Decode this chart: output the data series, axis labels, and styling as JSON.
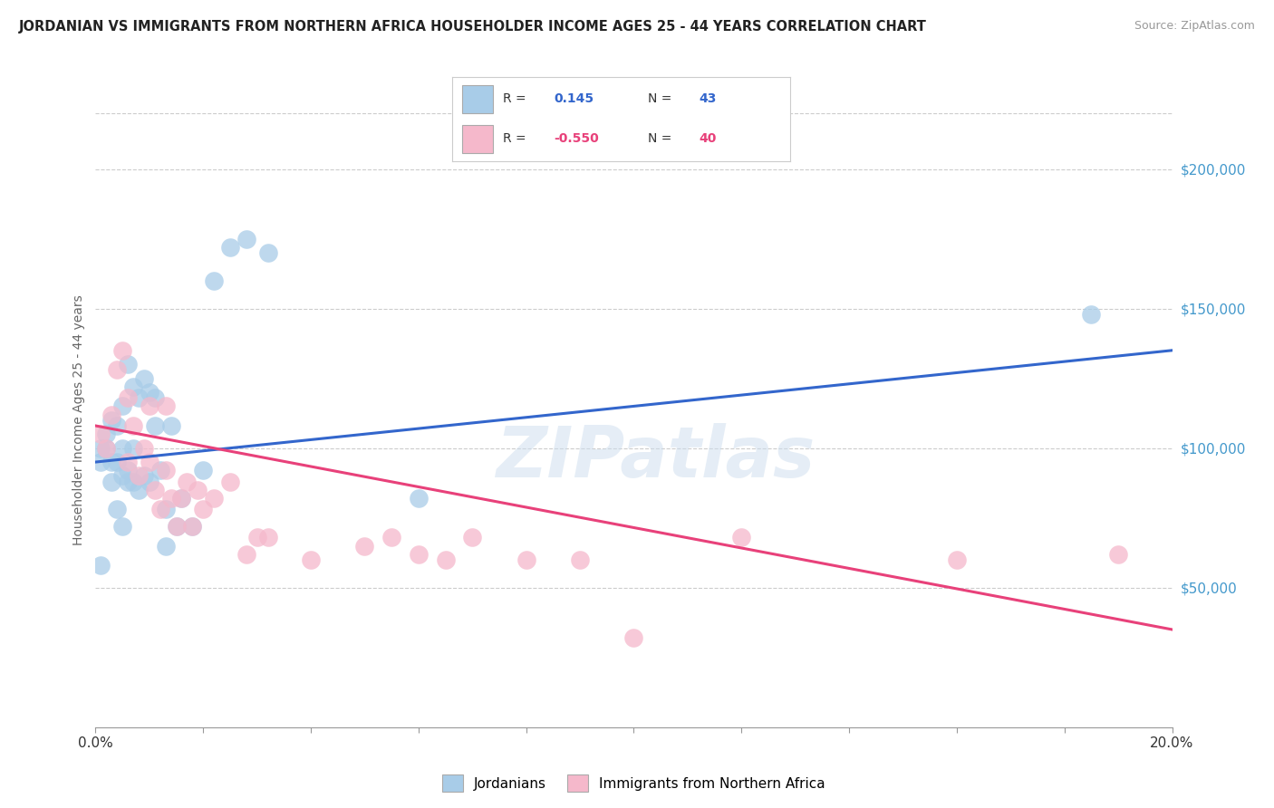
{
  "title": "JORDANIAN VS IMMIGRANTS FROM NORTHERN AFRICA HOUSEHOLDER INCOME AGES 25 - 44 YEARS CORRELATION CHART",
  "source": "Source: ZipAtlas.com",
  "ylabel": "Householder Income Ages 25 - 44 years",
  "xlim": [
    0.0,
    0.2
  ],
  "ylim": [
    0,
    220000
  ],
  "xticks": [
    0.0,
    0.02,
    0.04,
    0.06,
    0.08,
    0.1,
    0.12,
    0.14,
    0.16,
    0.18,
    0.2
  ],
  "yticks_right": [
    50000,
    100000,
    150000,
    200000
  ],
  "ytick_labels_right": [
    "$50,000",
    "$100,000",
    "$150,000",
    "$200,000"
  ],
  "blue_R": "0.145",
  "blue_N": "43",
  "pink_R": "-0.550",
  "pink_N": "40",
  "blue_color": "#a8cce8",
  "pink_color": "#f5b8cb",
  "blue_line_color": "#3366cc",
  "pink_line_color": "#e8417a",
  "background_color": "#ffffff",
  "grid_color": "#cccccc",
  "watermark": "ZIPatlas",
  "legend_label_blue": "Jordanians",
  "legend_label_pink": "Immigrants from Northern Africa",
  "blue_x": [
    0.001,
    0.001,
    0.002,
    0.002,
    0.003,
    0.003,
    0.003,
    0.004,
    0.004,
    0.004,
    0.005,
    0.005,
    0.005,
    0.005,
    0.006,
    0.006,
    0.006,
    0.007,
    0.007,
    0.007,
    0.008,
    0.008,
    0.009,
    0.009,
    0.01,
    0.01,
    0.011,
    0.011,
    0.012,
    0.013,
    0.013,
    0.014,
    0.015,
    0.016,
    0.018,
    0.02,
    0.022,
    0.025,
    0.028,
    0.032,
    0.06,
    0.185,
    0.001
  ],
  "blue_y": [
    100000,
    95000,
    100000,
    105000,
    110000,
    95000,
    88000,
    108000,
    95000,
    78000,
    115000,
    100000,
    90000,
    72000,
    130000,
    92000,
    88000,
    122000,
    100000,
    88000,
    118000,
    85000,
    125000,
    90000,
    120000,
    88000,
    118000,
    108000,
    92000,
    78000,
    65000,
    108000,
    72000,
    82000,
    72000,
    92000,
    160000,
    172000,
    175000,
    170000,
    82000,
    148000,
    58000
  ],
  "pink_x": [
    0.001,
    0.002,
    0.003,
    0.004,
    0.005,
    0.006,
    0.006,
    0.007,
    0.008,
    0.009,
    0.01,
    0.01,
    0.011,
    0.012,
    0.013,
    0.013,
    0.014,
    0.015,
    0.016,
    0.017,
    0.018,
    0.019,
    0.02,
    0.022,
    0.025,
    0.028,
    0.03,
    0.032,
    0.04,
    0.05,
    0.055,
    0.06,
    0.065,
    0.07,
    0.08,
    0.09,
    0.1,
    0.12,
    0.16,
    0.19
  ],
  "pink_y": [
    105000,
    100000,
    112000,
    128000,
    135000,
    118000,
    95000,
    108000,
    90000,
    100000,
    95000,
    115000,
    85000,
    78000,
    92000,
    115000,
    82000,
    72000,
    82000,
    88000,
    72000,
    85000,
    78000,
    82000,
    88000,
    62000,
    68000,
    68000,
    60000,
    65000,
    68000,
    62000,
    60000,
    68000,
    60000,
    60000,
    32000,
    68000,
    60000,
    62000
  ],
  "blue_line_x0": 0.0,
  "blue_line_y0": 95000,
  "blue_line_x1": 0.2,
  "blue_line_y1": 135000,
  "pink_line_x0": 0.0,
  "pink_line_y0": 108000,
  "pink_line_x1": 0.2,
  "pink_line_y1": 35000
}
